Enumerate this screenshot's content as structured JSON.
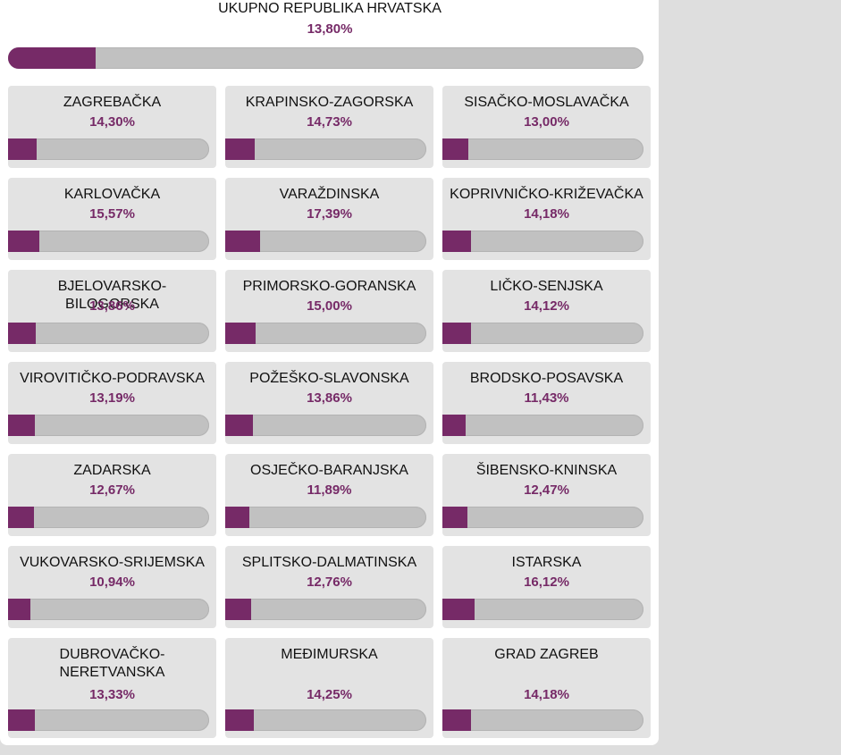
{
  "colors": {
    "accent": "#762a67",
    "track": "#c1c1c1",
    "value_text": "#762a67"
  },
  "total": {
    "title": "UKUPNO REPUBLIKA HRVATSKA",
    "value": "13,80%",
    "fraction": 0.138
  },
  "counties": [
    {
      "name": "ZAGREBAČKA",
      "value": "14,30%",
      "fraction": 0.143
    },
    {
      "name": "KRAPINSKO-ZAGORSKA",
      "value": "14,73%",
      "fraction": 0.1473
    },
    {
      "name": "SISAČKO-MOSLAVAČKA",
      "value": "13,00%",
      "fraction": 0.13
    },
    {
      "name": "KARLOVAČKA",
      "value": "15,57%",
      "fraction": 0.1557
    },
    {
      "name": "VARAŽDINSKA",
      "value": "17,39%",
      "fraction": 0.1739
    },
    {
      "name": "KOPRIVNIČKO-KRIŽEVAČKA",
      "value": "14,18%",
      "fraction": 0.1418
    },
    {
      "name": "BJELOVARSKO-BILOGORSKA",
      "value": "13,86%",
      "fraction": 0.1386
    },
    {
      "name": "PRIMORSKO-GORANSKA",
      "value": "15,00%",
      "fraction": 0.15
    },
    {
      "name": "LIČKO-SENJSKA",
      "value": "14,12%",
      "fraction": 0.1412
    },
    {
      "name": "VIROVITIČKO-PODRAVSKA",
      "value": "13,19%",
      "fraction": 0.1319
    },
    {
      "name": "POŽEŠKO-SLAVONSKA",
      "value": "13,86%",
      "fraction": 0.1386
    },
    {
      "name": "BRODSKO-POSAVSKA",
      "value": "11,43%",
      "fraction": 0.1143
    },
    {
      "name": "ZADARSKA",
      "value": "12,67%",
      "fraction": 0.1267
    },
    {
      "name": "OSJEČKO-BARANJSKA",
      "value": "11,89%",
      "fraction": 0.1189
    },
    {
      "name": "ŠIBENSKO-KNINSKA",
      "value": "12,47%",
      "fraction": 0.1247
    },
    {
      "name": "VUKOVARSKO-SRIJEMSKA",
      "value": "10,94%",
      "fraction": 0.1094
    },
    {
      "name": "SPLITSKO-DALMATINSKA",
      "value": "12,76%",
      "fraction": 0.1276
    },
    {
      "name": "ISTARSKA",
      "value": "16,12%",
      "fraction": 0.1612
    },
    {
      "name": "DUBROVAČKO-NERETVANSKA",
      "value": "13,33%",
      "fraction": 0.1333
    },
    {
      "name": "MEĐIMURSKA",
      "value": "14,25%",
      "fraction": 0.1425
    },
    {
      "name": "GRAD ZAGREB",
      "value": "14,18%",
      "fraction": 0.1418
    }
  ]
}
